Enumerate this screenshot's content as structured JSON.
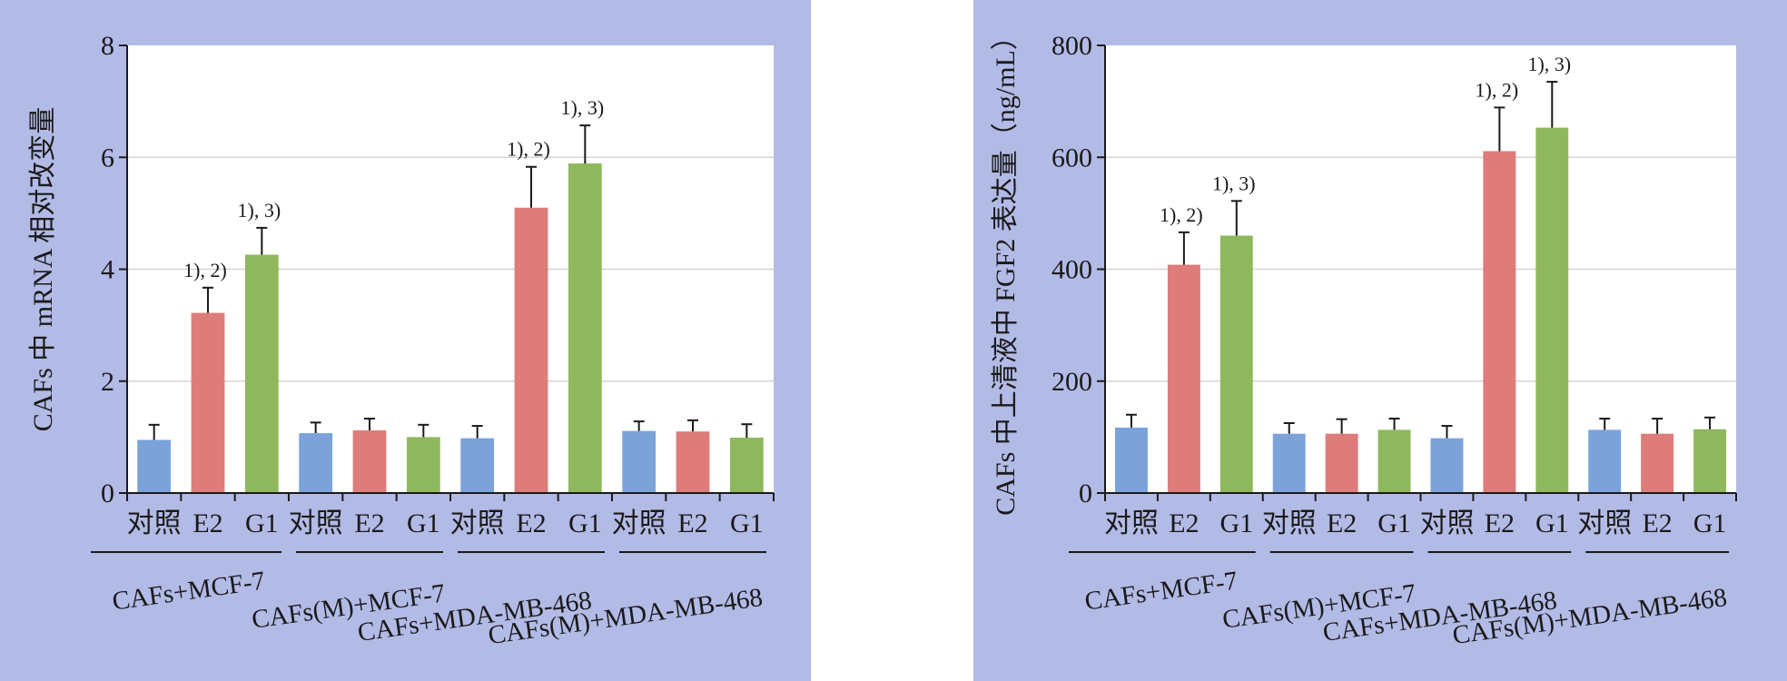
{
  "chart_data": [
    {
      "type": "bar",
      "ylabel": "CAFs 中 mRNA 相对改变量",
      "ylim": [
        0,
        8
      ],
      "yticks": [
        0,
        2,
        4,
        6,
        8
      ],
      "grid": "horizontal",
      "categories": [
        "对照",
        "E2",
        "G1",
        "对照",
        "E2",
        "G1",
        "对照",
        "E2",
        "G1",
        "对照",
        "E2",
        "G1"
      ],
      "groups": [
        "CAFs+MCF-7",
        "CAFs(M)+MCF-7",
        "CAFs+MDA-MB-468",
        "CAFs(M)+MDA-MB-468"
      ],
      "values": [
        0.95,
        3.22,
        4.26,
        1.07,
        1.12,
        1.0,
        0.98,
        5.1,
        5.89,
        1.11,
        1.1,
        0.99
      ],
      "errors": [
        0.27,
        0.45,
        0.48,
        0.19,
        0.21,
        0.22,
        0.22,
        0.73,
        0.68,
        0.17,
        0.2,
        0.24
      ],
      "annotations": [
        "",
        "1), 2)",
        "1), 3)",
        "",
        "",
        "",
        "",
        "1), 2)",
        "1), 3)",
        "",
        "",
        ""
      ],
      "colors": [
        "#7ba3da",
        "#dd7c7a",
        "#8fb85e"
      ]
    },
    {
      "type": "bar",
      "ylabel": "CAFs 中上清液中 FGF2 表达量（ng/mL）",
      "ylim": [
        0,
        800
      ],
      "yticks": [
        0,
        200,
        400,
        600,
        800
      ],
      "grid": "horizontal",
      "categories": [
        "对照",
        "E2",
        "G1",
        "对照",
        "E2",
        "G1",
        "对照",
        "E2",
        "G1",
        "对照",
        "E2",
        "G1"
      ],
      "groups": [
        "CAFs+MCF-7",
        "CAFs(M)+MCF-7",
        "CAFs+MDA-MB-468",
        "CAFs(M)+MDA-MB-468"
      ],
      "values": [
        117,
        408,
        460,
        106,
        106,
        113,
        98,
        611,
        653,
        113,
        106,
        114
      ],
      "errors": [
        23,
        58,
        62,
        19,
        26,
        20,
        22,
        78,
        82,
        20,
        27,
        21
      ],
      "annotations": [
        "",
        "1), 2)",
        "1), 3)",
        "",
        "",
        "",
        "",
        "1), 2)",
        "1), 3)",
        "",
        "",
        ""
      ],
      "colors": [
        "#7ba3da",
        "#dd7c7a",
        "#8fb85e"
      ]
    }
  ]
}
